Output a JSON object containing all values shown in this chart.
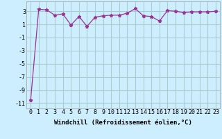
{
  "x": [
    0,
    1,
    2,
    3,
    4,
    5,
    6,
    7,
    8,
    9,
    10,
    11,
    12,
    13,
    14,
    15,
    16,
    17,
    18,
    19,
    20,
    21,
    22,
    23
  ],
  "y": [
    -10.5,
    3.3,
    3.2,
    2.4,
    2.6,
    0.9,
    2.2,
    0.7,
    2.1,
    2.3,
    2.4,
    2.4,
    2.7,
    3.4,
    2.3,
    2.2,
    1.5,
    3.1,
    3.0,
    2.8,
    2.9,
    2.9,
    2.9,
    3.0
  ],
  "line_color": "#993399",
  "marker": "*",
  "marker_size": 3.5,
  "bg_color": "#cceeff",
  "grid_color": "#aacccc",
  "xlabel": "Windchill (Refroidissement éolien,°C)",
  "xlim": [
    -0.5,
    23.5
  ],
  "ylim": [
    -11.8,
    4.5
  ],
  "yticks": [
    3,
    1,
    -1,
    -3,
    -5,
    -7,
    -9,
    -11
  ],
  "xtick_labels": [
    "0",
    "1",
    "2",
    "3",
    "4",
    "5",
    "6",
    "7",
    "8",
    "9",
    "10",
    "11",
    "12",
    "13",
    "14",
    "15",
    "16",
    "17",
    "18",
    "19",
    "20",
    "21",
    "22",
    "23"
  ],
  "xlabel_fontsize": 6.5,
  "tick_fontsize": 6.0
}
